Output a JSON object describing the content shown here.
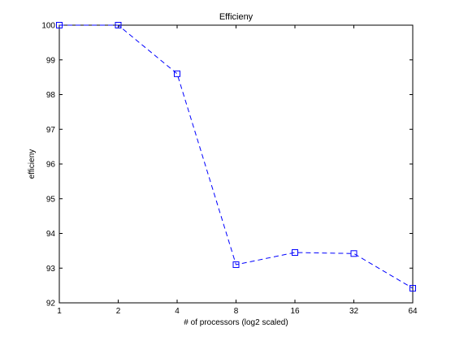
{
  "chart_data": {
    "type": "line",
    "title": "Efficieny",
    "xlabel": "# of processors (log2 scaled)",
    "ylabel": "efficieny",
    "x_scale": "log2",
    "x": [
      1,
      2,
      4,
      8,
      16,
      32,
      64
    ],
    "x_tick_labels": [
      "1",
      "2",
      "4",
      "8",
      "16",
      "32",
      "64"
    ],
    "y_ticks": [
      92,
      93,
      94,
      95,
      96,
      97,
      98,
      99,
      100
    ],
    "y_tick_labels": [
      "92",
      "93",
      "94",
      "95",
      "96",
      "97",
      "98",
      "99",
      "100"
    ],
    "xlim": [
      1,
      64
    ],
    "ylim": [
      92,
      100
    ],
    "grid": false,
    "series": [
      {
        "values": [
          100,
          100,
          98.6,
          93.1,
          93.45,
          93.42,
          92.42
        ],
        "color": "#0000ff",
        "line_style": "dashed",
        "marker": "square"
      }
    ]
  }
}
